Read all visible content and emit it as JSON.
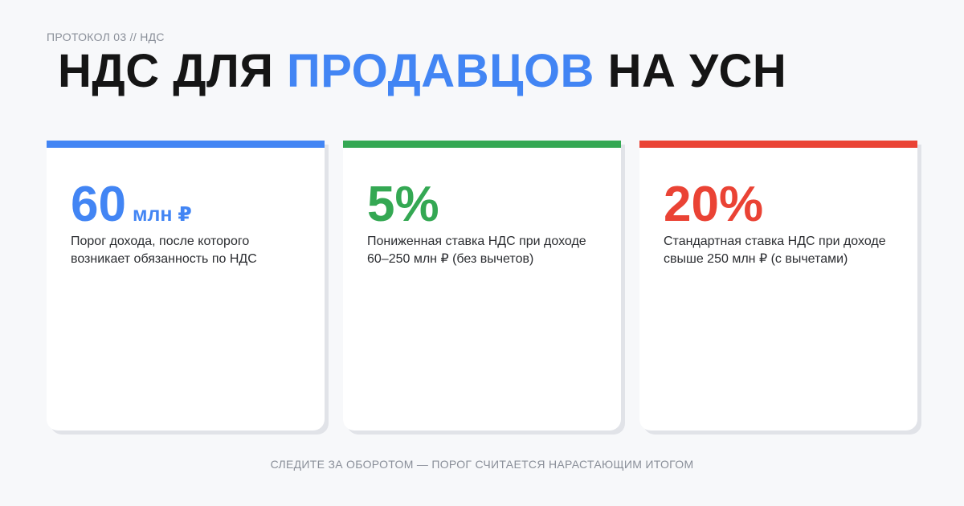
{
  "header": {
    "kicker": "ПРОТОКОЛ 03 // НДС",
    "title_part1": "НДС ДЛЯ ",
    "title_accent": "ПРОДАВЦОВ",
    "title_part2": " НА УСН"
  },
  "cards": [
    {
      "value": "60",
      "unit": "млн ₽",
      "description": "Порог дохода, после которого возникает обязанность по НДС",
      "color": "#4285f4"
    },
    {
      "value": "5%",
      "unit": "",
      "description": "Пониженная ставка НДС при доходе 60–250 млн ₽ (без вычетов)",
      "color": "#34a853"
    },
    {
      "value": "20%",
      "unit": "",
      "description": "Стандартная ставка НДС при доходе свыше 250 млн ₽ (с вычетами)",
      "color": "#ea4335"
    }
  ],
  "footer": {
    "note": "СЛЕДИТЕ ЗА ОБОРОТОМ — ПОРОГ СЧИТАЕТСЯ НАРАСТАЮЩИМ ИТОГОМ"
  }
}
